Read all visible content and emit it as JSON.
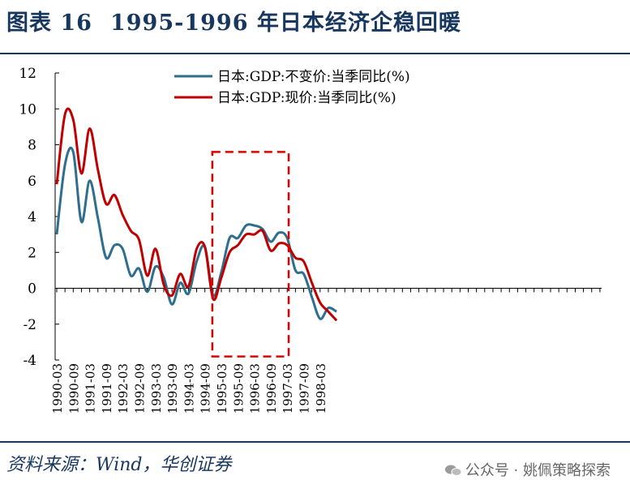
{
  "header": {
    "figure_no": "图表 16",
    "title": "1995-1996 年日本经济企稳回暖"
  },
  "footer": {
    "source": "资料来源：Wind，华创证券",
    "watermark": "公众号 · 姚佩策略探索"
  },
  "colors": {
    "title": "#17375e",
    "real_gdp": "#2e6e8e",
    "nominal_gdp": "#c00000",
    "highlight_box": "#e00000"
  },
  "chart_data": {
    "type": "line",
    "ylim": [
      -4,
      12
    ],
    "y_ticks": [
      -4,
      -2,
      0,
      2,
      4,
      6,
      8,
      10,
      12
    ],
    "x_ticks": [
      "1990-03",
      "1990-09",
      "1991-03",
      "1991-09",
      "1992-03",
      "1992-09",
      "1993-03",
      "1993-09",
      "1994-03",
      "1994-09",
      "1995-03",
      "1995-09",
      "1996-03",
      "1996-09",
      "1997-03",
      "1997-09",
      "1998-03"
    ],
    "grid": false,
    "legend": "top-center",
    "series": [
      {
        "name": "日本:GDP:不变价:当季同比(%)",
        "color": "#2e6e8e",
        "points": [
          [
            "1990-03",
            3.0
          ],
          [
            "1990-06",
            6.9
          ],
          [
            "1990-09",
            7.6
          ],
          [
            "1990-12",
            3.7
          ],
          [
            "1991-03",
            6.0
          ],
          [
            "1991-06",
            3.9
          ],
          [
            "1991-09",
            1.7
          ],
          [
            "1991-12",
            2.4
          ],
          [
            "1992-03",
            2.2
          ],
          [
            "1992-06",
            0.7
          ],
          [
            "1992-09",
            1.1
          ],
          [
            "1992-12",
            -0.2
          ],
          [
            "1993-03",
            1.2
          ],
          [
            "1993-06",
            0.6
          ],
          [
            "1993-09",
            -0.9
          ],
          [
            "1993-12",
            0.3
          ],
          [
            "1994-03",
            -0.3
          ],
          [
            "1994-06",
            1.5
          ],
          [
            "1994-09",
            2.3
          ],
          [
            "1994-12",
            -0.4
          ],
          [
            "1995-03",
            0.9
          ],
          [
            "1995-06",
            2.8
          ],
          [
            "1995-09",
            2.8
          ],
          [
            "1995-12",
            3.5
          ],
          [
            "1996-03",
            3.5
          ],
          [
            "1996-06",
            3.3
          ],
          [
            "1996-09",
            2.6
          ],
          [
            "1996-12",
            3.1
          ],
          [
            "1997-03",
            2.8
          ],
          [
            "1997-06",
            1.0
          ],
          [
            "1997-09",
            0.8
          ],
          [
            "1997-12",
            -0.5
          ],
          [
            "1998-03",
            -1.7
          ],
          [
            "1998-06",
            -1.1
          ],
          [
            "1998-09",
            -1.3
          ]
        ]
      },
      {
        "name": "日本:GDP:现价:当季同比(%)",
        "color": "#c00000",
        "points": [
          [
            "1990-03",
            5.8
          ],
          [
            "1990-06",
            9.7
          ],
          [
            "1990-09",
            9.4
          ],
          [
            "1990-12",
            6.4
          ],
          [
            "1991-03",
            8.9
          ],
          [
            "1991-06",
            6.6
          ],
          [
            "1991-09",
            4.7
          ],
          [
            "1991-12",
            5.2
          ],
          [
            "1992-03",
            4.1
          ],
          [
            "1992-06",
            3.2
          ],
          [
            "1992-09",
            2.7
          ],
          [
            "1992-12",
            0.7
          ],
          [
            "1993-03",
            2.2
          ],
          [
            "1993-06",
            0.2
          ],
          [
            "1993-09",
            -0.4
          ],
          [
            "1993-12",
            0.8
          ],
          [
            "1994-03",
            0.1
          ],
          [
            "1994-06",
            2.2
          ],
          [
            "1994-09",
            2.3
          ],
          [
            "1994-12",
            -0.6
          ],
          [
            "1995-03",
            0.6
          ],
          [
            "1995-06",
            2.0
          ],
          [
            "1995-09",
            2.4
          ],
          [
            "1995-12",
            3.0
          ],
          [
            "1996-03",
            3.0
          ],
          [
            "1996-06",
            3.2
          ],
          [
            "1996-09",
            2.1
          ],
          [
            "1996-12",
            2.5
          ],
          [
            "1997-03",
            2.4
          ],
          [
            "1997-06",
            1.7
          ],
          [
            "1997-09",
            1.5
          ],
          [
            "1997-12",
            0.3
          ],
          [
            "1998-03",
            -0.8
          ],
          [
            "1998-06",
            -1.3
          ],
          [
            "1998-09",
            -1.8
          ]
        ]
      }
    ],
    "highlight": {
      "from": "1994-12",
      "to": "1996-12",
      "y_range": [
        -3.8,
        7.6
      ]
    }
  }
}
